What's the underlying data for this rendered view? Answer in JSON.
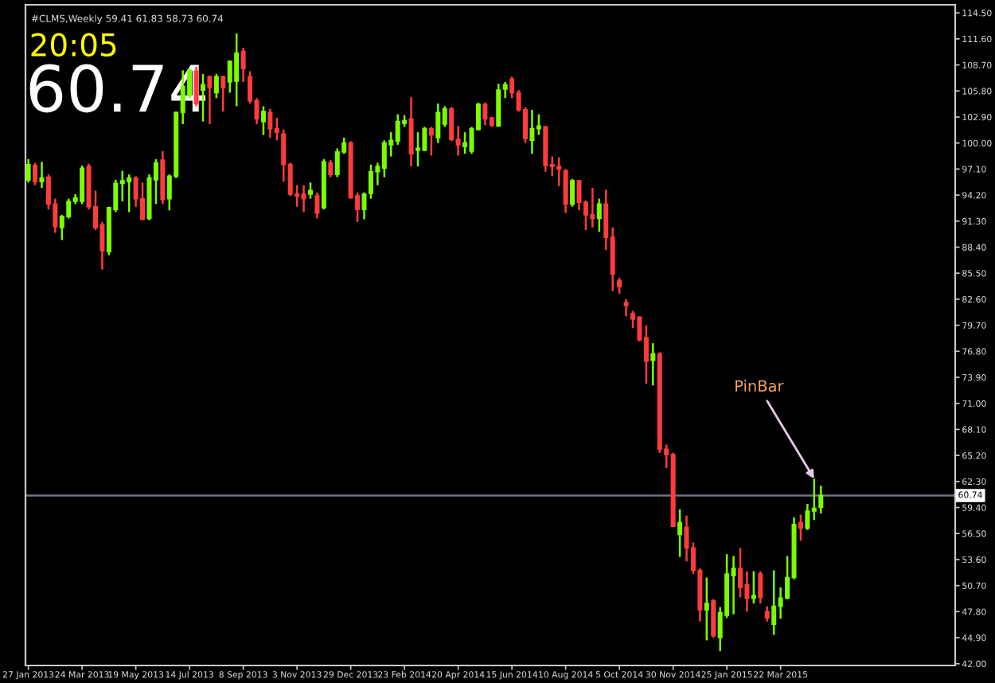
{
  "chart_data": {
    "type": "candlestick",
    "annotations": [
      "#CLMS,Weekly 59.41 61.83 58.73 60.74",
      "20:05",
      "60.74",
      {
        "text": "PinBar",
        "x": "2015-04-26",
        "y": 62.6
      }
    ],
    "x": [
      "2013-01-27",
      "2013-02-03",
      "2013-02-10",
      "2013-02-17",
      "2013-02-24",
      "2013-03-03",
      "2013-03-10",
      "2013-03-17",
      "2013-03-24",
      "2013-03-31",
      "2013-04-07",
      "2013-04-14",
      "2013-04-21",
      "2013-04-28",
      "2013-05-05",
      "2013-05-12",
      "2013-05-19",
      "2013-05-26",
      "2013-06-02",
      "2013-06-09",
      "2013-06-16",
      "2013-06-23",
      "2013-06-30",
      "2013-07-07",
      "2013-07-14",
      "2013-07-21",
      "2013-07-28",
      "2013-08-04",
      "2013-08-11",
      "2013-08-18",
      "2013-08-25",
      "2013-09-01",
      "2013-09-08",
      "2013-09-15",
      "2013-09-22",
      "2013-09-29",
      "2013-10-06",
      "2013-10-13",
      "2013-10-20",
      "2013-10-27",
      "2013-11-03",
      "2013-11-10",
      "2013-11-17",
      "2013-11-24",
      "2013-12-01",
      "2013-12-08",
      "2013-12-15",
      "2013-12-22",
      "2013-12-29",
      "2014-01-05",
      "2014-01-12",
      "2014-01-19",
      "2014-01-26",
      "2014-02-02",
      "2014-02-09",
      "2014-02-16",
      "2014-02-23",
      "2014-03-02",
      "2014-03-09",
      "2014-03-16",
      "2014-03-23",
      "2014-03-30",
      "2014-04-06",
      "2014-04-13",
      "2014-04-20",
      "2014-04-27",
      "2014-05-04",
      "2014-05-11",
      "2014-05-18",
      "2014-05-25",
      "2014-06-01",
      "2014-06-08",
      "2014-06-15",
      "2014-06-22",
      "2014-06-29",
      "2014-07-06",
      "2014-07-13",
      "2014-07-20",
      "2014-07-27",
      "2014-08-03",
      "2014-08-10",
      "2014-08-17",
      "2014-08-24",
      "2014-08-31",
      "2014-09-07",
      "2014-09-14",
      "2014-09-21",
      "2014-09-28",
      "2014-10-05",
      "2014-10-12",
      "2014-10-19",
      "2014-10-26",
      "2014-11-02",
      "2014-11-09",
      "2014-11-16",
      "2014-11-23",
      "2014-11-30",
      "2014-12-07",
      "2014-12-14",
      "2014-12-21",
      "2014-12-28",
      "2015-01-04",
      "2015-01-11",
      "2015-01-18",
      "2015-01-25",
      "2015-02-01",
      "2015-02-08",
      "2015-02-15",
      "2015-02-22",
      "2015-03-01",
      "2015-03-08",
      "2015-03-15",
      "2015-03-22",
      "2015-03-29",
      "2015-04-05",
      "2015-04-12",
      "2015-04-19",
      "2015-04-26",
      "2015-05-03"
    ],
    "ohlc": [
      [
        95.9,
        98.2,
        95.6,
        97.6
      ],
      [
        97.5,
        97.8,
        95.3,
        95.7
      ],
      [
        95.7,
        97.9,
        95.0,
        96.1
      ],
      [
        96.2,
        96.5,
        92.6,
        93.2
      ],
      [
        93.2,
        93.8,
        90.0,
        90.7
      ],
      [
        90.6,
        92.0,
        89.2,
        91.8
      ],
      [
        91.8,
        93.8,
        91.6,
        93.5
      ],
      [
        93.5,
        94.3,
        93.2,
        93.9
      ],
      [
        93.5,
        97.5,
        93.2,
        97.2
      ],
      [
        97.4,
        97.7,
        92.6,
        92.9
      ],
      [
        92.9,
        94.7,
        90.3,
        90.6
      ],
      [
        90.9,
        91.2,
        85.9,
        88.0
      ],
      [
        87.9,
        92.9,
        87.5,
        92.8
      ],
      [
        92.6,
        95.9,
        92.3,
        95.5
      ],
      [
        95.5,
        96.9,
        93.5,
        95.8
      ],
      [
        95.7,
        96.5,
        92.3,
        96.1
      ],
      [
        96.1,
        96.3,
        92.9,
        93.8
      ],
      [
        93.8,
        95.6,
        91.4,
        91.5
      ],
      [
        91.6,
        96.5,
        91.4,
        96.1
      ],
      [
        95.9,
        98.2,
        93.2,
        97.8
      ],
      [
        98.1,
        99.1,
        93.2,
        93.7
      ],
      [
        93.8,
        96.5,
        92.5,
        96.3
      ],
      [
        96.3,
        103.5,
        96.1,
        103.4
      ],
      [
        103.4,
        108.1,
        102.1,
        106.3
      ],
      [
        105.3,
        108.3,
        105.0,
        108.1
      ],
      [
        108.0,
        108.5,
        104.1,
        104.4
      ],
      [
        105.9,
        107.7,
        102.4,
        106.5
      ],
      [
        107.4,
        107.5,
        102.1,
        106.2
      ],
      [
        105.6,
        107.7,
        105.0,
        107.4
      ],
      [
        107.4,
        107.5,
        103.5,
        106.2
      ],
      [
        106.8,
        109.2,
        105.6,
        109.1
      ],
      [
        106.9,
        112.2,
        104.1,
        110.0
      ],
      [
        110.2,
        110.6,
        106.8,
        108.3
      ],
      [
        107.4,
        108.0,
        104.4,
        104.7
      ],
      [
        104.7,
        105.0,
        102.1,
        102.7
      ],
      [
        102.4,
        104.1,
        100.9,
        103.5
      ],
      [
        103.4,
        103.8,
        100.6,
        101.6
      ],
      [
        101.6,
        102.8,
        100.3,
        101.2
      ],
      [
        101.0,
        101.5,
        95.7,
        97.6
      ],
      [
        97.6,
        97.8,
        94.1,
        94.3
      ],
      [
        94.3,
        95.3,
        92.9,
        94.1
      ],
      [
        94.3,
        95.3,
        92.3,
        93.8
      ],
      [
        94.3,
        95.6,
        93.8,
        94.7
      ],
      [
        94.1,
        94.5,
        91.6,
        92.2
      ],
      [
        92.8,
        98.2,
        92.6,
        97.9
      ],
      [
        97.8,
        98.1,
        96.2,
        96.5
      ],
      [
        96.5,
        99.4,
        96.2,
        99.0
      ],
      [
        99.0,
        100.6,
        98.8,
        100.0
      ],
      [
        100.0,
        100.2,
        93.8,
        93.9
      ],
      [
        94.1,
        94.5,
        91.2,
        92.6
      ],
      [
        92.6,
        94.5,
        91.5,
        94.3
      ],
      [
        94.4,
        97.6,
        93.8,
        96.8
      ],
      [
        96.8,
        97.8,
        95.3,
        97.4
      ],
      [
        97.2,
        100.3,
        96.2,
        100.0
      ],
      [
        99.8,
        101.2,
        98.5,
        100.3
      ],
      [
        100.2,
        103.2,
        99.8,
        102.4
      ],
      [
        102.2,
        103.1,
        101.8,
        102.5
      ],
      [
        102.7,
        105.1,
        97.4,
        98.8
      ],
      [
        99.2,
        101.2,
        97.4,
        99.4
      ],
      [
        99.2,
        101.8,
        99.1,
        101.6
      ],
      [
        101.6,
        101.8,
        98.6,
        100.9
      ],
      [
        100.6,
        104.4,
        100.0,
        103.4
      ],
      [
        102.1,
        104.1,
        101.8,
        103.8
      ],
      [
        103.8,
        104.0,
        100.2,
        100.4
      ],
      [
        100.4,
        101.9,
        98.6,
        99.8
      ],
      [
        99.6,
        101.2,
        98.8,
        100.0
      ],
      [
        99.1,
        101.8,
        98.8,
        101.6
      ],
      [
        101.5,
        104.5,
        101.4,
        104.3
      ],
      [
        104.3,
        104.5,
        102.0,
        102.7
      ],
      [
        102.8,
        102.9,
        101.8,
        102.0
      ],
      [
        101.9,
        106.6,
        101.8,
        105.9
      ],
      [
        106.0,
        106.8,
        105.0,
        106.5
      ],
      [
        107.1,
        107.4,
        105.0,
        105.6
      ],
      [
        105.6,
        105.9,
        103.5,
        103.7
      ],
      [
        103.7,
        104.0,
        100.0,
        100.5
      ],
      [
        100.3,
        103.7,
        98.8,
        101.6
      ],
      [
        101.6,
        103.2,
        100.9,
        101.9
      ],
      [
        101.8,
        101.9,
        96.8,
        97.5
      ],
      [
        97.6,
        98.5,
        96.3,
        97.4
      ],
      [
        97.4,
        98.4,
        95.2,
        97.1
      ],
      [
        96.9,
        97.1,
        92.2,
        93.2
      ],
      [
        93.2,
        96.0,
        92.9,
        95.8
      ],
      [
        95.8,
        95.9,
        92.5,
        93.4
      ],
      [
        93.4,
        93.6,
        90.3,
        92.0
      ],
      [
        92.0,
        95.0,
        90.6,
        91.6
      ],
      [
        91.6,
        93.8,
        90.1,
        93.2
      ],
      [
        93.2,
        94.8,
        88.1,
        89.5
      ],
      [
        89.5,
        90.6,
        83.5,
        85.4
      ],
      [
        84.7,
        85.0,
        83.2,
        84.0
      ],
      [
        82.2,
        82.6,
        80.7,
        81.9
      ],
      [
        81.0,
        81.3,
        79.4,
        80.4
      ],
      [
        80.6,
        80.7,
        77.9,
        78.1
      ],
      [
        78.3,
        79.7,
        73.2,
        75.7
      ],
      [
        75.8,
        77.7,
        73.0,
        76.5
      ],
      [
        76.5,
        76.7,
        65.5,
        65.9
      ],
      [
        65.9,
        66.4,
        63.8,
        65.3
      ],
      [
        65.3,
        65.5,
        57.2,
        57.3
      ],
      [
        56.4,
        59.2,
        53.9,
        57.7
      ],
      [
        57.2,
        58.5,
        53.4,
        54.9
      ],
      [
        54.9,
        55.5,
        52.0,
        52.4
      ],
      [
        52.4,
        52.6,
        46.7,
        48.0
      ],
      [
        48.0,
        51.6,
        44.6,
        48.7
      ],
      [
        49.0,
        49.2,
        44.9,
        45.1
      ],
      [
        44.9,
        48.3,
        43.4,
        47.7
      ],
      [
        47.4,
        54.2,
        47.1,
        52.0
      ],
      [
        51.8,
        54.0,
        47.5,
        52.6
      ],
      [
        52.6,
        54.9,
        49.4,
        50.5
      ],
      [
        50.8,
        52.3,
        47.8,
        49.3
      ],
      [
        49.3,
        52.3,
        48.7,
        49.6
      ],
      [
        52.0,
        52.3,
        48.7,
        49.4
      ],
      [
        47.8,
        48.4,
        46.7,
        47.1
      ],
      [
        46.4,
        52.4,
        45.2,
        48.4
      ],
      [
        48.4,
        50.5,
        47.0,
        49.3
      ],
      [
        49.3,
        54.0,
        49.2,
        51.6
      ],
      [
        51.6,
        58.3,
        51.4,
        57.5
      ],
      [
        57.7,
        58.6,
        55.7,
        57.1
      ],
      [
        57.1,
        59.8,
        56.9,
        59.0
      ],
      [
        59.0,
        62.6,
        58.0,
        59.3
      ],
      [
        59.41,
        61.83,
        58.73,
        60.74
      ]
    ],
    "colors": [
      "#7cfc00",
      "#ff3c3c",
      "#7cfc00",
      "#ff3c3c",
      "#ff3c3c",
      "#7cfc00",
      "#7cfc00",
      "#7cfc00",
      "#7cfc00",
      "#ff3c3c",
      "#ff3c3c",
      "#ff3c3c",
      "#7cfc00",
      "#7cfc00",
      "#7cfc00",
      "#7cfc00",
      "#ff3c3c",
      "#ff3c3c",
      "#7cfc00",
      "#7cfc00",
      "#ff3c3c",
      "#7cfc00",
      "#7cfc00",
      "#7cfc00",
      "#7cfc00",
      "#ff3c3c",
      "#7cfc00",
      "#ff3c3c",
      "#7cfc00",
      "#ff3c3c",
      "#7cfc00",
      "#7cfc00",
      "#ff3c3c",
      "#ff3c3c",
      "#ff3c3c",
      "#7cfc00",
      "#ff3c3c",
      "#ff3c3c",
      "#ff3c3c",
      "#ff3c3c",
      "#ff3c3c",
      "#ff3c3c",
      "#7cfc00",
      "#ff3c3c",
      "#7cfc00",
      "#ff3c3c",
      "#7cfc00",
      "#7cfc00",
      "#ff3c3c",
      "#ff3c3c",
      "#7cfc00",
      "#7cfc00",
      "#7cfc00",
      "#7cfc00",
      "#7cfc00",
      "#7cfc00",
      "#7cfc00",
      "#ff3c3c",
      "#7cfc00",
      "#7cfc00",
      "#ff3c3c",
      "#7cfc00",
      "#7cfc00",
      "#ff3c3c",
      "#ff3c3c",
      "#7cfc00",
      "#7cfc00",
      "#7cfc00",
      "#ff3c3c",
      "#ff3c3c",
      "#7cfc00",
      "#7cfc00",
      "#ff3c3c",
      "#ff3c3c",
      "#ff3c3c",
      "#7cfc00",
      "#7cfc00",
      "#ff3c3c",
      "#ff3c3c",
      "#ff3c3c",
      "#ff3c3c",
      "#7cfc00",
      "#ff3c3c",
      "#ff3c3c",
      "#ff3c3c",
      "#7cfc00",
      "#ff3c3c",
      "#ff3c3c",
      "#ff3c3c",
      "#ff3c3c",
      "#ff3c3c",
      "#ff3c3c",
      "#ff3c3c",
      "#7cfc00",
      "#ff3c3c",
      "#ff3c3c",
      "#ff3c3c",
      "#7cfc00",
      "#ff3c3c",
      "#ff3c3c",
      "#ff3c3c",
      "#7cfc00",
      "#ff3c3c",
      "#7cfc00",
      "#7cfc00",
      "#7cfc00",
      "#ff3c3c",
      "#ff3c3c",
      "#7cfc00",
      "#ff3c3c",
      "#ff3c3c",
      "#7cfc00",
      "#7cfc00",
      "#7cfc00",
      "#7cfc00",
      "#ff3c3c",
      "#7cfc00",
      "#7cfc00",
      "#7cfc00"
    ],
    "xlim": [
      "2013-01-24",
      "2015-09-20"
    ],
    "xticks": [
      {
        "value": "2013-01-27",
        "label": "27 Jan 2013"
      },
      {
        "value": "2013-03-24",
        "label": "24 Mar 2013"
      },
      {
        "value": "2013-05-19",
        "label": "19 May 2013"
      },
      {
        "value": "2013-07-14",
        "label": "14 Jul 2013"
      },
      {
        "value": "2013-09-08",
        "label": "8 Sep 2013"
      },
      {
        "value": "2013-11-03",
        "label": "3 Nov 2013"
      },
      {
        "value": "2013-12-29",
        "label": "29 Dec 2013"
      },
      {
        "value": "2014-02-23",
        "label": "23 Feb 2014"
      },
      {
        "value": "2014-04-20",
        "label": "20 Apr 2014"
      },
      {
        "value": "2014-06-15",
        "label": "15 Jun 2014"
      },
      {
        "value": "2014-08-10",
        "label": "10 Aug 2014"
      },
      {
        "value": "2014-10-05",
        "label": "5 Oct 2014"
      },
      {
        "value": "2014-11-30",
        "label": "30 Nov 2014"
      },
      {
        "value": "2015-01-25",
        "label": "25 Jan 2015"
      },
      {
        "value": "2015-03-22",
        "label": "22 Mar 2015"
      }
    ],
    "ylim": [
      41.8,
      115.4
    ],
    "yticks": [
      {
        "value": 42.0,
        "label": "42.00"
      },
      {
        "value": 44.9,
        "label": "44.90"
      },
      {
        "value": 47.8,
        "label": "47.80"
      },
      {
        "value": 50.7,
        "label": "50.70"
      },
      {
        "value": 53.6,
        "label": "53.60"
      },
      {
        "value": 56.5,
        "label": "56.50"
      },
      {
        "value": 59.4,
        "label": "59.40"
      },
      {
        "value": 62.3,
        "label": "62.30"
      },
      {
        "value": 65.2,
        "label": "65.20"
      },
      {
        "value": 68.1,
        "label": "68.10"
      },
      {
        "value": 71.0,
        "label": "71.00"
      },
      {
        "value": 73.9,
        "label": "73.90"
      },
      {
        "value": 76.8,
        "label": "76.80"
      },
      {
        "value": 79.7,
        "label": "79.70"
      },
      {
        "value": 82.6,
        "label": "82.60"
      },
      {
        "value": 85.5,
        "label": "85.50"
      },
      {
        "value": 88.4,
        "label": "88.40"
      },
      {
        "value": 91.3,
        "label": "91.30"
      },
      {
        "value": 94.2,
        "label": "94.20"
      },
      {
        "value": 97.1,
        "label": "97.10"
      },
      {
        "value": 100.0,
        "label": "100.00"
      },
      {
        "value": 102.9,
        "label": "102.90"
      },
      {
        "value": 105.8,
        "label": "105.80"
      },
      {
        "value": 108.7,
        "label": "108.70"
      },
      {
        "value": 111.6,
        "label": "111.60"
      },
      {
        "value": 114.5,
        "label": "114.50"
      }
    ],
    "ref_lines": [
      {
        "axis": "y",
        "value": 60.74,
        "label": "60.74",
        "color": "#6e7387"
      }
    ],
    "grid": false,
    "legend": false
  }
}
